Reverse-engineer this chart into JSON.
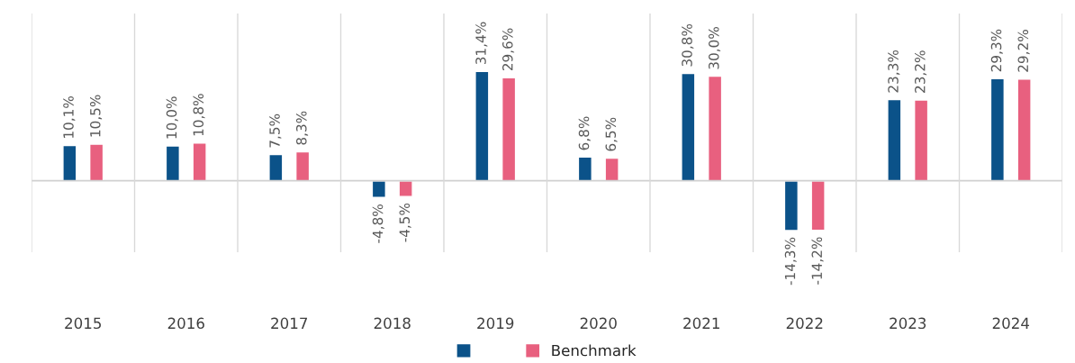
{
  "chart_data": {
    "type": "bar",
    "categories": [
      "2015",
      "2016",
      "2017",
      "2018",
      "2019",
      "2020",
      "2021",
      "2022",
      "2023",
      "2024"
    ],
    "series": [
      {
        "color": "#0b5289",
        "values": [
          10.1,
          10.0,
          7.5,
          -4.8,
          31.4,
          6.8,
          30.8,
          -14.3,
          23.3,
          29.3
        ],
        "value_labels": [
          "10,1%",
          "10,0%",
          "7,5%",
          "-4,8%",
          "31,4%",
          "6,8%",
          "30,8%",
          "-14,3%",
          "23,3%",
          "29,3%"
        ]
      },
      {
        "name": "Benchmark",
        "color": "#e8607f",
        "values": [
          10.5,
          10.8,
          8.3,
          -4.5,
          29.6,
          6.5,
          30.0,
          -14.2,
          23.2,
          29.2
        ],
        "value_labels": [
          "10,5%",
          "10,8%",
          "8,3%",
          "-4,5%",
          "29,6%",
          "6,5%",
          "30,0%",
          "-14,2%",
          "23,2%",
          "29,2%"
        ]
      }
    ],
    "ylim": [
      -20.5,
      48
    ],
    "grid": "x",
    "legend": "bottom",
    "tick_labels": "x"
  }
}
